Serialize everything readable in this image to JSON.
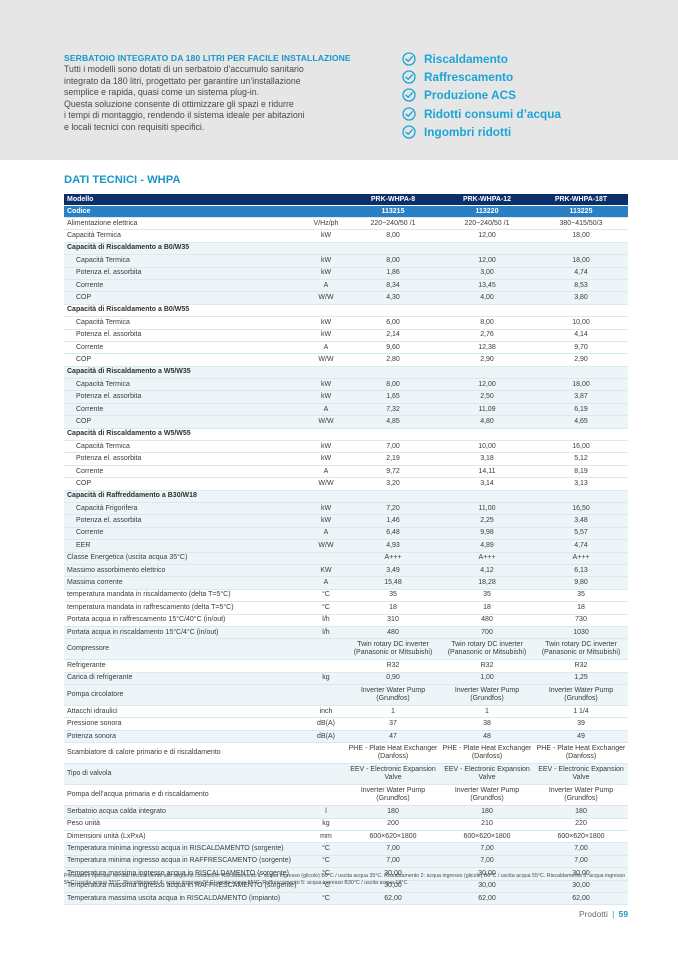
{
  "intro": {
    "title": "SERBATOIO INTEGRATO DA 180 LITRI PER FACILE INSTALLAZIONE",
    "lines": [
      "Tutti i modelli sono dotati di un serbatoio d’accumulo sanitario",
      "integrato da 180 litri, progettato per garantire un’installazione",
      "semplice e rapida, quasi come un sistema plug-in.",
      "Questa soluzione consente di ottimizzare gli spazi e ridurre",
      "i tempi di montaggio, rendendo il sistema ideale per abitazioni",
      "e locali tecnici con requisiti specifici."
    ]
  },
  "features": [
    "Riscaldamento",
    "Raffrescamento",
    "Produzione ACS",
    "Ridotti consumi d’acqua",
    "Ingombri ridotti"
  ],
  "section_title": "DATI TECNICI - WHPA",
  "table": {
    "header": [
      "Modello",
      "",
      "PRK-WHPA-8",
      "PRK-WHPA-12",
      "PRK-WHPA-18T"
    ],
    "code_row": [
      "Codice",
      "",
      "113215",
      "113220",
      "113225"
    ],
    "rows": [
      [
        "Alimentazione elettrica",
        "V/Hz/ph",
        "220~240/50 /1",
        "220~240/50 /1",
        "380~415/50/3"
      ],
      [
        "Capacità Termica",
        "kW",
        "8,00",
        "12,00",
        "18,00"
      ],
      [
        "Capacità di Riscaldamento a B0/W35",
        "",
        "",
        "",
        ""
      ],
      [
        "Capacità Termica",
        "kW",
        "8,00",
        "12,00",
        "18,00"
      ],
      [
        "Potenza el. assorbita",
        "kW",
        "1,86",
        "3,00",
        "4,74"
      ],
      [
        "Corrente",
        "A",
        "8,34",
        "13,45",
        "8,53"
      ],
      [
        "COP",
        "W/W",
        "4,30",
        "4,00",
        "3,80"
      ],
      [
        "Capacità di Riscaldamento a B0/W55",
        "",
        "",
        "",
        ""
      ],
      [
        "Capacità Termica",
        "kW",
        "6,00",
        "8,00",
        "10,00"
      ],
      [
        "Potenza el. assorbita",
        "kW",
        "2,14",
        "2,76",
        "4,14"
      ],
      [
        "Corrente",
        "A",
        "9,60",
        "12,38",
        "9,70"
      ],
      [
        "COP",
        "W/W",
        "2,80",
        "2,90",
        "2,90"
      ],
      [
        "Capacità di Riscaldamento a W5/W35",
        "",
        "",
        "",
        ""
      ],
      [
        "Capacità Termica",
        "kW",
        "8,00",
        "12,00",
        "18,00"
      ],
      [
        "Potenza el. assorbita",
        "kW",
        "1,65",
        "2,50",
        "3,87"
      ],
      [
        "Corrente",
        "A",
        "7,32",
        "11,09",
        "6,19"
      ],
      [
        "COP",
        "W/W",
        "4,85",
        "4,80",
        "4,65"
      ],
      [
        "Capacità di Riscaldamento a W5/W55",
        "",
        "",
        "",
        ""
      ],
      [
        "Capacità Termica",
        "kW",
        "7,00",
        "10,00",
        "16,00"
      ],
      [
        "Potenza el. assorbita",
        "kW",
        "2,19",
        "3,18",
        "5,12"
      ],
      [
        "Corrente",
        "A",
        "9,72",
        "14,11",
        "8,19"
      ],
      [
        "COP",
        "W/W",
        "3,20",
        "3,14",
        "3,13"
      ],
      [
        "Capacità di Raffreddamento a B30/W18",
        "",
        "",
        "",
        ""
      ],
      [
        "Capacità Frigorifera",
        "kW",
        "7,20",
        "11,00",
        "16,50"
      ],
      [
        "Potenza el. assorbita",
        "kW",
        "1,46",
        "2,25",
        "3,48"
      ],
      [
        "Corrente",
        "A",
        "6,48",
        "9,98",
        "5,57"
      ],
      [
        "EER",
        "W/W",
        "4,93",
        "4,89",
        "4,74"
      ],
      [
        "Classe Energetica  (uscita acqua 35°C)",
        "",
        "A+++",
        "A+++",
        "A+++"
      ],
      [
        "Massimo assorbimento elettrico",
        "KW",
        "3,49",
        "4,12",
        "6,13"
      ],
      [
        "Massima corrente",
        "A",
        "15,48",
        "18,28",
        "9,80"
      ],
      [
        "temperatura mandata in riscaldamento (delta T=5°C)",
        "°C",
        "35",
        "35",
        "35"
      ],
      [
        "temperatura mandata in raffrescamento (delta T=5°C)",
        "°C",
        "18",
        "18",
        "18"
      ],
      [
        "Portata acqua in raffrescamento 15°C/40°C (in/out)",
        "l/h",
        "310",
        "480",
        "730"
      ],
      [
        "Portata acqua in riscaldamento 15°C/4°C (in/out)",
        "l/h",
        "480",
        "700",
        "1030"
      ],
      [
        "Compressore",
        "",
        "Twin rotary DC inverter (Panasonic or Mitsubishi)",
        "Twin rotary DC inverter (Panasonic or Mitsubishi)",
        "Twin rotary DC inverter (Panasonic or Mitsubishi)"
      ],
      [
        "Refrigerante",
        "",
        "R32",
        "R32",
        "R32"
      ],
      [
        "Carica di refrigerante",
        "kg",
        "0,90",
        "1,00",
        "1,25"
      ],
      [
        "Pompa circolatore",
        "",
        "Inverter Water Pump (Grundfos)",
        "Inverter Water Pump (Grundfos)",
        "Inverter Water Pump (Grundfos)"
      ],
      [
        "Attacchi idraulici",
        "inch",
        "1",
        "1",
        "1 1/4"
      ],
      [
        "Pressione sonora",
        "dB(A)",
        "37",
        "38",
        "39"
      ],
      [
        "Potenza sonora",
        "dB(A)",
        "47",
        "48",
        "49"
      ],
      [
        "Scambiatore di calore primario e di riscaldamento",
        "",
        "PHE - Plate Heat Exchanger (Danfoss)",
        "PHE - Plate Heat Exchanger (Danfoss)",
        "PHE - Plate Heat Exchanger (Danfoss)"
      ],
      [
        "Tipo di valvola",
        "",
        "EEV - Electronic Expansion Valve",
        "EEV - Electronic Expansion Valve",
        "EEV - Electronic Expansion Valve"
      ],
      [
        "Pompa dell’acqua primaria e di riscaldamento",
        "",
        "Inverter Water Pump (Grundfos)",
        "Inverter Water Pump (Grundfos)",
        "Inverter Water Pump (Grundfos)"
      ],
      [
        "Serbatoio acqua calda integrato",
        "l",
        "180",
        "180",
        "180"
      ],
      [
        "Peso unità",
        "kg",
        "200",
        "210",
        "220"
      ],
      [
        "Dimensioni unità (LxPxA)",
        "mm",
        "600×620×1800",
        "600×620×1800",
        "600×620×1800"
      ],
      [
        "Temperatura minima ingresso acqua in RISCALDAMENTO (sorgente)",
        "°C",
        "7,00",
        "7,00",
        "7,00"
      ],
      [
        "Temperatura minima ingresso acqua in RAFFRESCAMENTO (sorgente)",
        "°C",
        "7,00",
        "7,00",
        "7,00"
      ],
      [
        "Temperatura massima ingresso acqua in RISCALDAMENTO (sorgente)",
        "°C",
        "30,00",
        "30,00",
        "30,00"
      ],
      [
        "Temperatura massima ingresso acqua in RAFFRESCAMENTO (sorgente)",
        "°C",
        "30,00",
        "30,00",
        "30,00"
      ],
      [
        "Temperatura massima uscita acqua in RISCALDAMENTO (impianto)",
        "°C",
        "62,00",
        "62,00",
        "62,00"
      ]
    ]
  },
  "footnote": "Prestazioni riportate nei dati tecnici riferite alle seguenti condizioni: Riscaldamento 1: acqua ingresso (glicole) B0°C / uscita acqua 35°C. Riscaldamento 2: acqua ingresso (glicole) B0°C / uscita acqua 55°C. Riscaldamento 3: acqua ingresso 5° C/ uscita acqua 35°C. Riscaldamento 4: acqua ingresso 5° C/ uscita acqua 55°C. Raffrescamento 5: acqua ingresso B30°C / uscita acqua 18°C.",
  "page": {
    "section": "Prodotti",
    "separator": "|",
    "number": "59"
  },
  "colors": {
    "accent": "#1a96c8",
    "header_dark": "#0b2f6b",
    "header_code": "#2b7fc4",
    "stripe": "#eef5f9"
  },
  "icons": {
    "feature": "check-circle-icon"
  }
}
